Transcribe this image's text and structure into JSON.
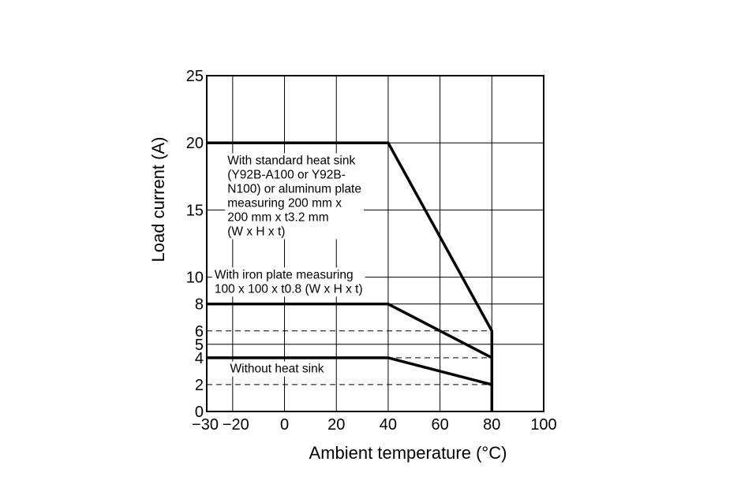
{
  "chart_data": {
    "type": "line",
    "xlabel": "Ambient temperature (°C)",
    "ylabel": "Load current (A)",
    "xlim": [
      -30,
      100
    ],
    "ylim": [
      0,
      25
    ],
    "x_ticks": [
      "−30",
      "−20",
      "0",
      "20",
      "40",
      "60",
      "80",
      "100"
    ],
    "x_tick_values": [
      -30,
      -20,
      0,
      20,
      40,
      60,
      80,
      100
    ],
    "y_ticks": [
      "0",
      "2",
      "4",
      "5",
      "6",
      "8",
      "10",
      "15",
      "20",
      "25"
    ],
    "y_tick_values": [
      0,
      2,
      4,
      5,
      6,
      8,
      10,
      15,
      20,
      25
    ],
    "grid_x": [
      -20,
      0,
      20,
      40,
      60,
      80
    ],
    "grid_y": [
      5,
      8,
      10,
      15,
      20
    ],
    "dashed_y": [
      2,
      4,
      6
    ],
    "series": [
      {
        "x": [
          -30,
          40,
          80,
          80
        ],
        "y": [
          20,
          20,
          6,
          0
        ],
        "annotation": [
          "With standard heat sink",
          "(Y92B-A100 or Y92B-",
          "N100) or aluminum plate",
          "measuring 200 mm x",
          "200 mm x t3.2 mm",
          "(W x H x t)"
        ]
      },
      {
        "x": [
          -30,
          40,
          80
        ],
        "y": [
          8,
          8,
          4
        ],
        "annotation": [
          "With iron plate measuring",
          "100 x 100 x t0.8 (W x H x t)"
        ]
      },
      {
        "x": [
          -30,
          40,
          80
        ],
        "y": [
          4,
          4,
          2
        ],
        "annotation": [
          "Without heat sink"
        ]
      }
    ]
  }
}
